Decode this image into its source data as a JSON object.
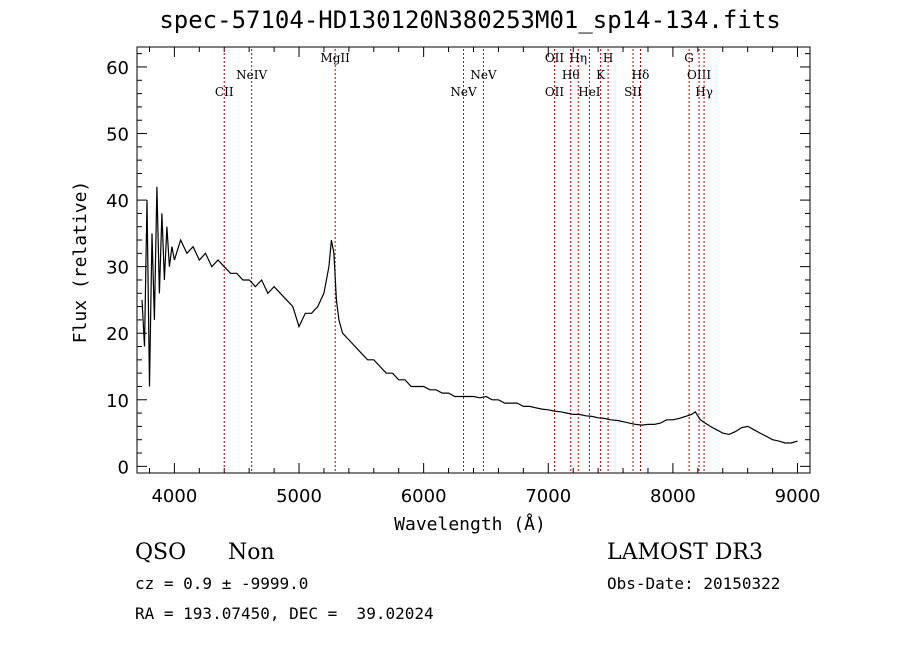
{
  "chart_data": {
    "type": "line",
    "title": "spec-57104-HD130120N380253M01_sp14-134.fits",
    "xlabel": "Wavelength (Å)",
    "ylabel": "Flux (relative)",
    "xlim": [
      3700,
      9100
    ],
    "ylim": [
      -1,
      63
    ],
    "x_ticks": [
      4000,
      5000,
      6000,
      7000,
      8000,
      9000
    ],
    "y_ticks": [
      0,
      10,
      20,
      30,
      40,
      50,
      60
    ],
    "grid": false,
    "series": [
      {
        "color": "#000000",
        "x": [
          3740,
          3760,
          3780,
          3800,
          3820,
          3840,
          3860,
          3880,
          3900,
          3920,
          3940,
          3960,
          3980,
          4000,
          4050,
          4100,
          4150,
          4200,
          4250,
          4300,
          4350,
          4400,
          4450,
          4500,
          4550,
          4600,
          4650,
          4700,
          4750,
          4800,
          4850,
          4900,
          4950,
          5000,
          5050,
          5100,
          5150,
          5200,
          5240,
          5260,
          5280,
          5300,
          5320,
          5350,
          5400,
          5450,
          5500,
          5550,
          5600,
          5650,
          5700,
          5750,
          5800,
          5850,
          5900,
          5950,
          6000,
          6050,
          6100,
          6150,
          6200,
          6250,
          6300,
          6350,
          6400,
          6450,
          6500,
          6550,
          6600,
          6650,
          6700,
          6750,
          6800,
          6850,
          6900,
          6950,
          7000,
          7050,
          7100,
          7150,
          7200,
          7250,
          7300,
          7350,
          7400,
          7450,
          7500,
          7550,
          7600,
          7650,
          7700,
          7750,
          7800,
          7850,
          7900,
          7950,
          8000,
          8050,
          8100,
          8150,
          8180,
          8220,
          8260,
          8300,
          8350,
          8400,
          8450,
          8500,
          8550,
          8600,
          8650,
          8700,
          8750,
          8800,
          8850,
          8900,
          8950,
          9000
        ],
        "y": [
          25,
          18,
          40,
          12,
          35,
          22,
          42,
          26,
          38,
          28,
          36,
          30,
          33,
          31,
          34,
          32,
          33,
          31,
          32,
          30,
          31,
          30,
          29,
          29,
          28,
          28,
          27,
          28,
          26,
          27,
          26,
          25,
          24,
          21,
          23,
          23,
          24,
          26,
          30,
          34,
          32,
          25,
          22,
          20,
          19,
          18,
          17,
          16,
          16,
          15,
          14,
          14,
          13,
          13,
          12,
          12,
          12,
          11.5,
          11.5,
          11,
          11,
          10.5,
          10.5,
          10.5,
          10.5,
          10.3,
          10.5,
          10,
          10,
          9.5,
          9.5,
          9.5,
          9,
          9,
          8.8,
          8.6,
          8.5,
          8.3,
          8.2,
          8,
          7.8,
          7.8,
          7.6,
          7.5,
          7.3,
          7.2,
          7,
          6.9,
          6.7,
          6.5,
          6.3,
          6.2,
          6.3,
          6.3,
          6.5,
          7,
          7,
          7.2,
          7.5,
          7.8,
          8.2,
          7,
          6.5,
          6,
          5.5,
          5,
          4.8,
          5.2,
          5.8,
          6,
          5.5,
          5,
          4.5,
          4,
          3.8,
          3.5,
          3.5,
          3.8
        ]
      }
    ],
    "lines": [
      {
        "name": "CII",
        "x": 4400,
        "row": 2
      },
      {
        "name": "NeIV",
        "x": 4620,
        "row": 1
      },
      {
        "name": "MgII",
        "x": 5290,
        "row": 0
      },
      {
        "name": "NeV",
        "x": 6320,
        "row": 2
      },
      {
        "name": "NeV",
        "x": 6480,
        "row": 1
      },
      {
        "name": "OII",
        "x": 7050,
        "row": 0
      },
      {
        "name": "OII",
        "x": 7050,
        "row": 2
      },
      {
        "name": "Hθ",
        "x": 7180,
        "row": 1
      },
      {
        "name": "Hη",
        "x": 7240,
        "row": 0
      },
      {
        "name": "HeI",
        "x": 7330,
        "row": 2
      },
      {
        "name": "K",
        "x": 7420,
        "row": 1
      },
      {
        "name": "H",
        "x": 7480,
        "row": 0
      },
      {
        "name": "SII",
        "x": 7680,
        "row": 2
      },
      {
        "name": "Hδ",
        "x": 7740,
        "row": 1
      },
      {
        "name": "G",
        "x": 8130,
        "row": 0
      },
      {
        "name": "OIII",
        "x": 8210,
        "row": 1
      },
      {
        "name": "Hγ",
        "x": 8250,
        "row": 2
      }
    ]
  },
  "info": {
    "class": "QSO",
    "subclass": "Non",
    "cz": "cz = 0.9 ± -9999.0",
    "radec": "RA = 193.07450, DEC =  39.02024",
    "survey": "LAMOST DR3",
    "obsdate": "Obs-Date: 20150322"
  }
}
